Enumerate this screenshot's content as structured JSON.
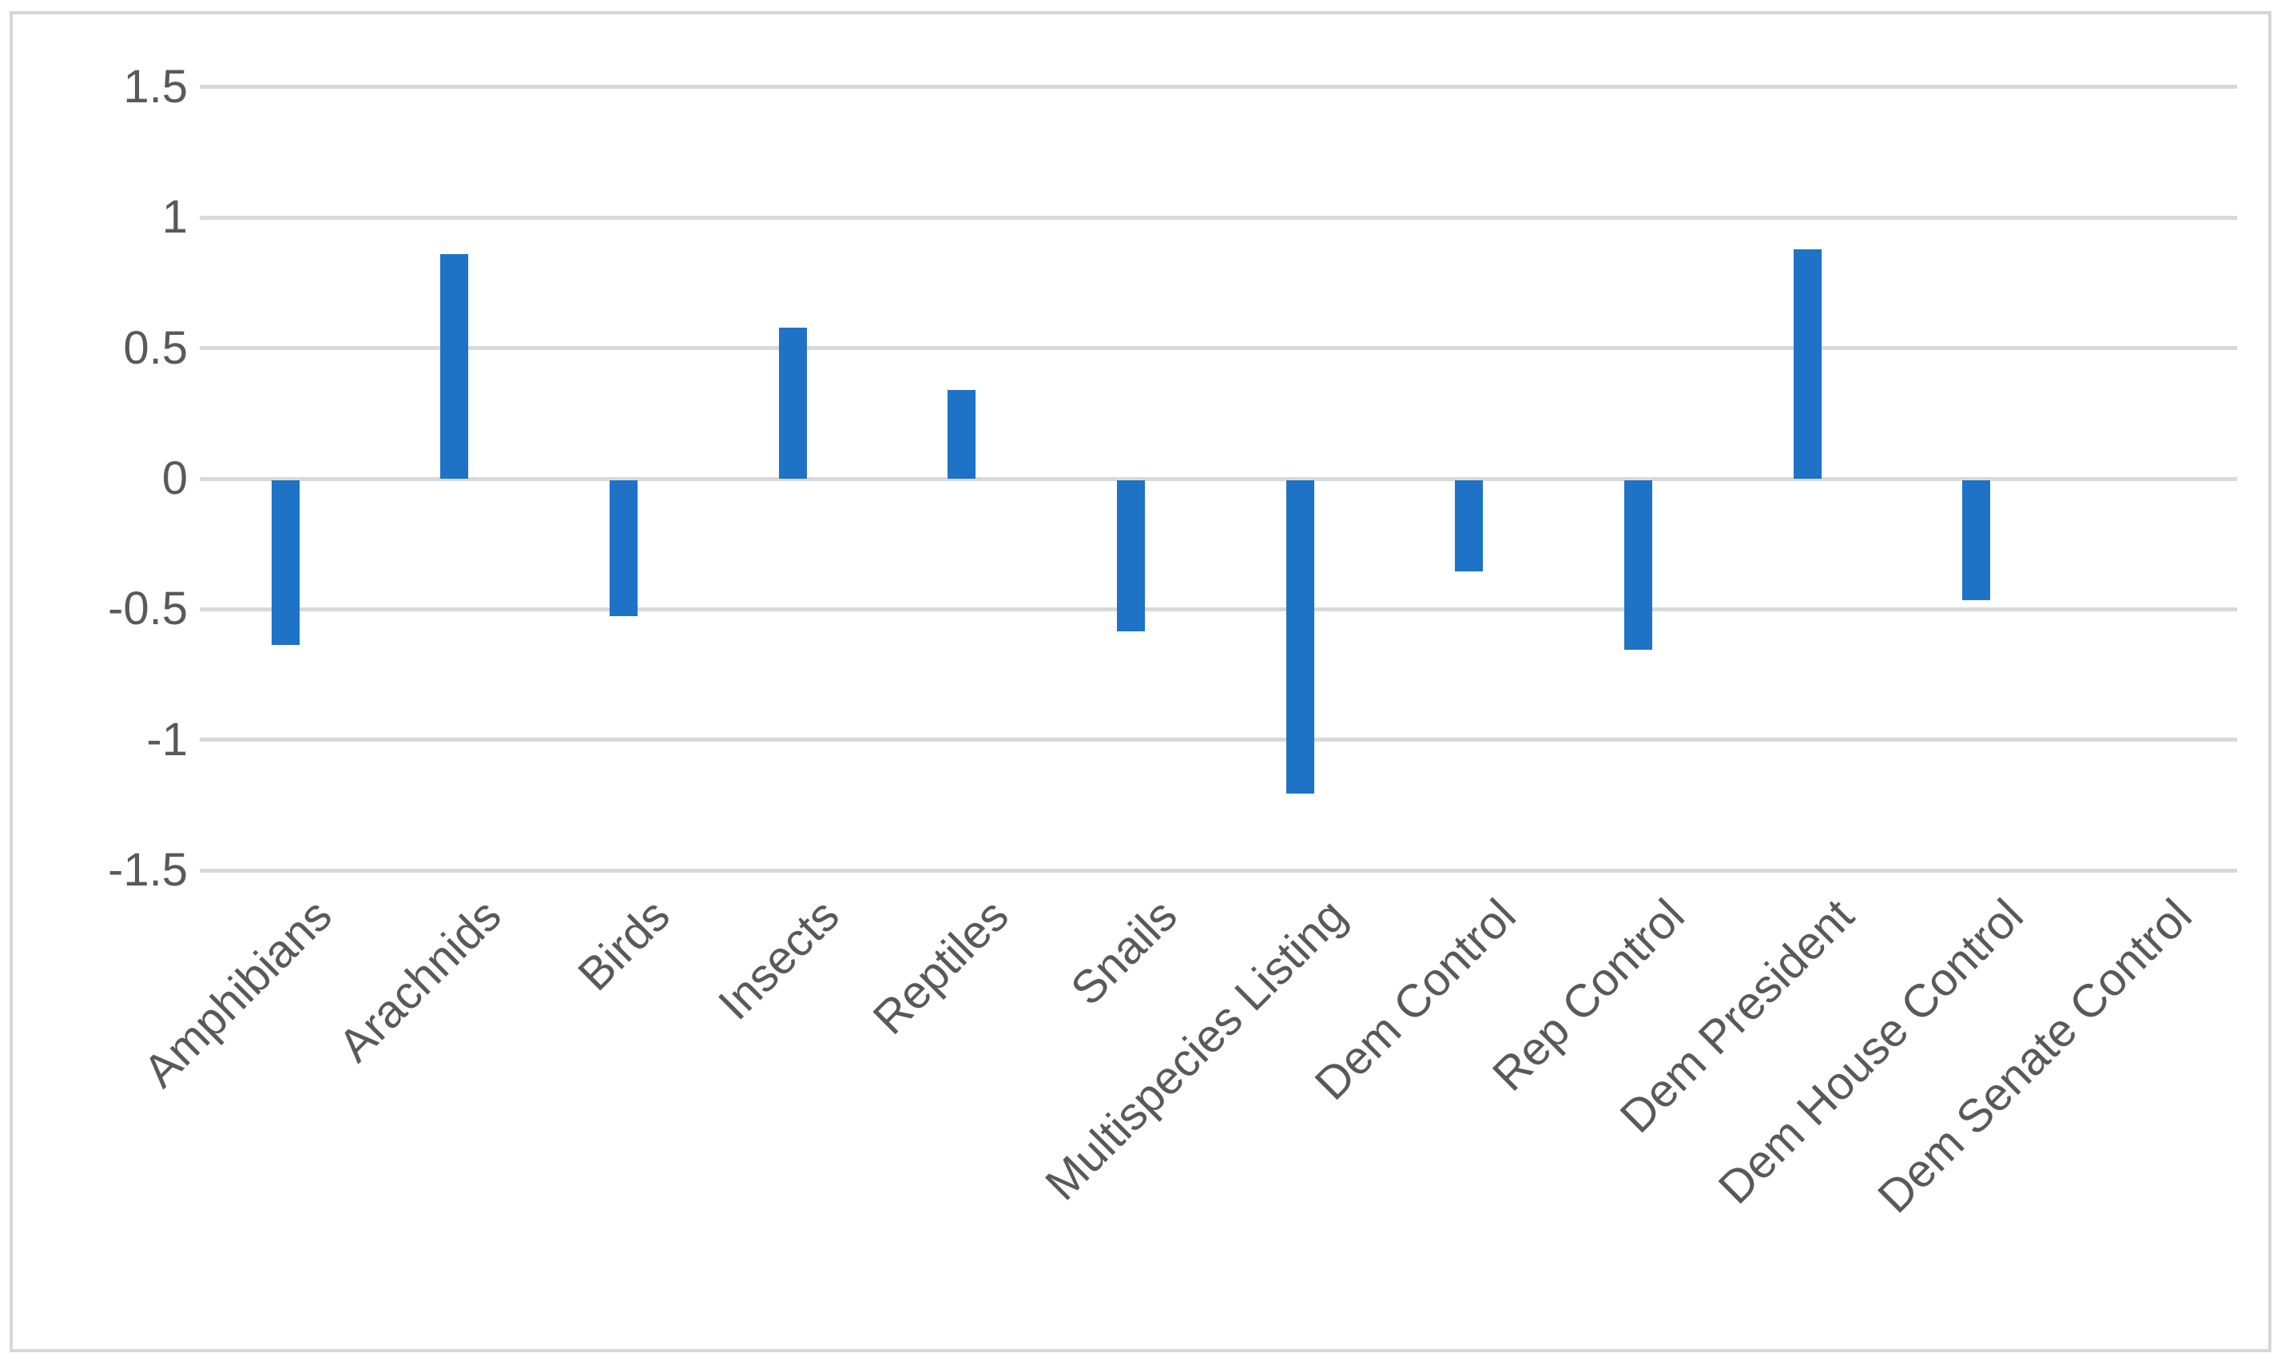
{
  "chart_data": {
    "type": "bar",
    "title": "",
    "xlabel": "",
    "ylabel": "",
    "categories": [
      "Amphibians",
      "Arachnids",
      "Birds",
      "Insects",
      "Reptiles",
      "Snails",
      "Multispecies Listing",
      "Dem Control",
      "Rep Control",
      "Dem President",
      "Dem House Control",
      "Dem Senate Control"
    ],
    "values": [
      -0.63,
      0.86,
      -0.52,
      0.58,
      0.34,
      -0.58,
      -1.2,
      -0.35,
      -0.65,
      0.88,
      -0.46,
      0
    ],
    "ylim": [
      -1.5,
      1.5
    ],
    "yticks": [
      1.5,
      1,
      0.5,
      0,
      -0.5,
      -1,
      -1.5
    ],
    "ytick_labels": [
      "1.5",
      "1",
      "0.5",
      "0",
      "-0.5",
      "-1",
      "-1.5"
    ],
    "grid": true,
    "legend": false,
    "bar_color": "#1e73c6",
    "gridline_color": "#d9d9d9",
    "axis_label_color": "#595959",
    "frame_border_color": "#d6d6d6",
    "background_color": "#ffffff"
  }
}
